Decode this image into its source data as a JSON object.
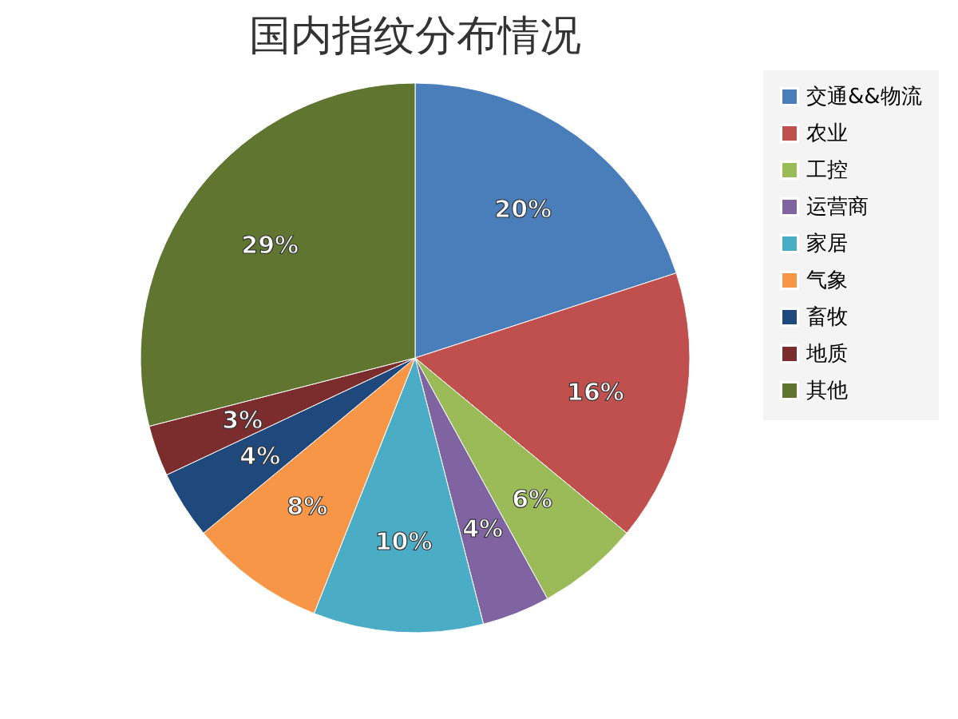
{
  "chart_data": {
    "type": "pie",
    "title": "国内指纹分布情况",
    "categories": [
      "交通&&物流",
      "农业",
      "工控",
      "运营商",
      "家居",
      "气象",
      "畜牧",
      "地质",
      "其他"
    ],
    "values": [
      20,
      16,
      6,
      4,
      10,
      8,
      4,
      3,
      29
    ],
    "value_labels": [
      "20%",
      "16%",
      "6%",
      "4%",
      "10%",
      "8%",
      "4%",
      "3%",
      "29%"
    ],
    "colors": [
      "#4a7ebb",
      "#c0504d",
      "#9bbb59",
      "#8064a2",
      "#4bacc6",
      "#f79646",
      "#1f497d",
      "#7b2c2c",
      "#5f7530"
    ],
    "legend": "right"
  }
}
